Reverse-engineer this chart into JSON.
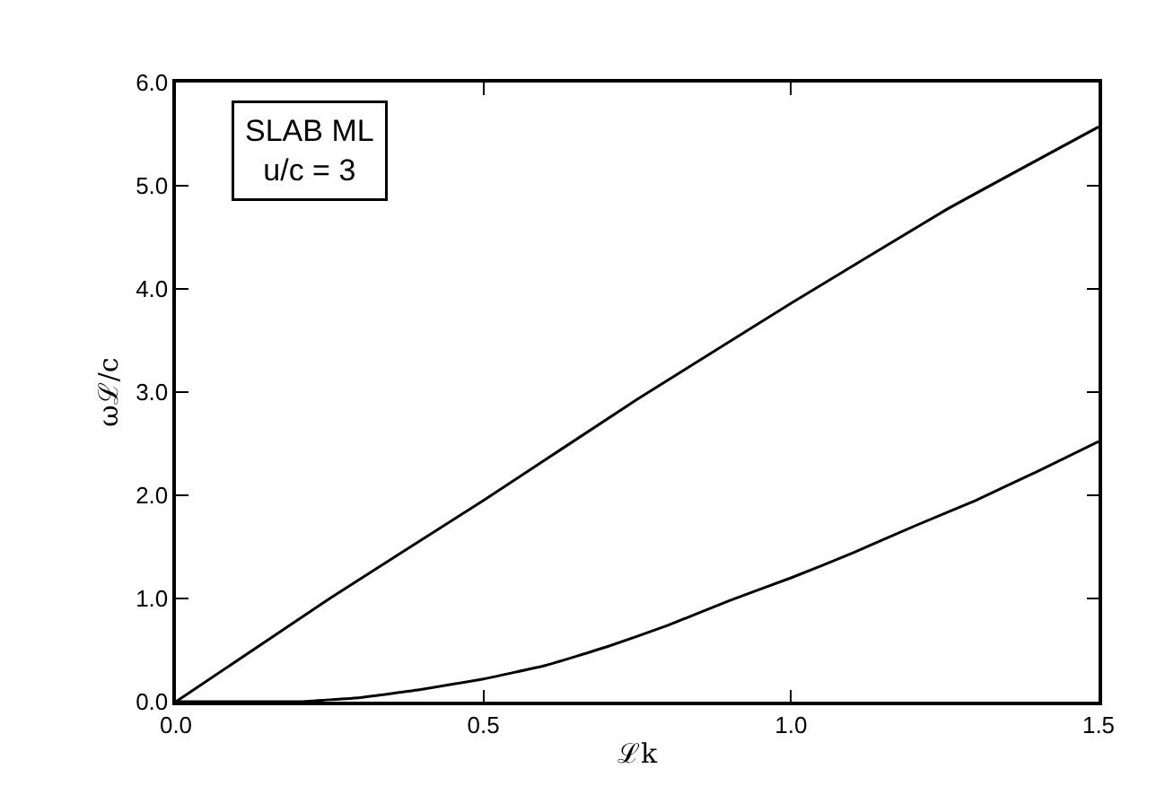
{
  "chart_data": {
    "type": "line",
    "xlabel": "ℒk",
    "ylabel": "ωℒ/c",
    "annotations": [
      "SLAB ML\nu/c = 3"
    ],
    "xlim": [
      0,
      1.5
    ],
    "xticks": [
      {
        "value": 0,
        "label": "0.0"
      },
      {
        "value": 0.5,
        "label": "0.5"
      },
      {
        "value": 1,
        "label": "1.0"
      },
      {
        "value": 1.5,
        "label": "1.5"
      }
    ],
    "ylim": [
      0,
      6
    ],
    "yticks": [
      {
        "value": 0,
        "label": "0.0"
      },
      {
        "value": 1,
        "label": "1.0"
      },
      {
        "value": 2,
        "label": "2.0"
      },
      {
        "value": 3,
        "label": "3.0"
      },
      {
        "value": 4,
        "label": "4.0"
      },
      {
        "value": 5,
        "label": "5.0"
      },
      {
        "value": 6,
        "label": "6.0"
      }
    ],
    "marker": "none",
    "line_style": "solid",
    "series": [
      {
        "color": "#000000",
        "x": [
          0,
          0.25,
          0.5,
          0.75,
          1,
          1.25,
          1.5
        ],
        "values": [
          0,
          1.0,
          1.95,
          2.93,
          3.86,
          4.76,
          5.57
        ]
      },
      {
        "color": "#000000",
        "x": [
          0,
          0.1,
          0.2,
          0.3,
          0.4,
          0.5,
          0.6,
          0.7,
          0.8,
          0.9,
          1,
          1.1,
          1.2,
          1.3,
          1.4,
          1.5
        ],
        "values": [
          0,
          0,
          0,
          0.04,
          0.12,
          0.22,
          0.35,
          0.53,
          0.74,
          0.98,
          1.2,
          1.44,
          1.7,
          1.95,
          2.23,
          2.52
        ]
      }
    ]
  }
}
